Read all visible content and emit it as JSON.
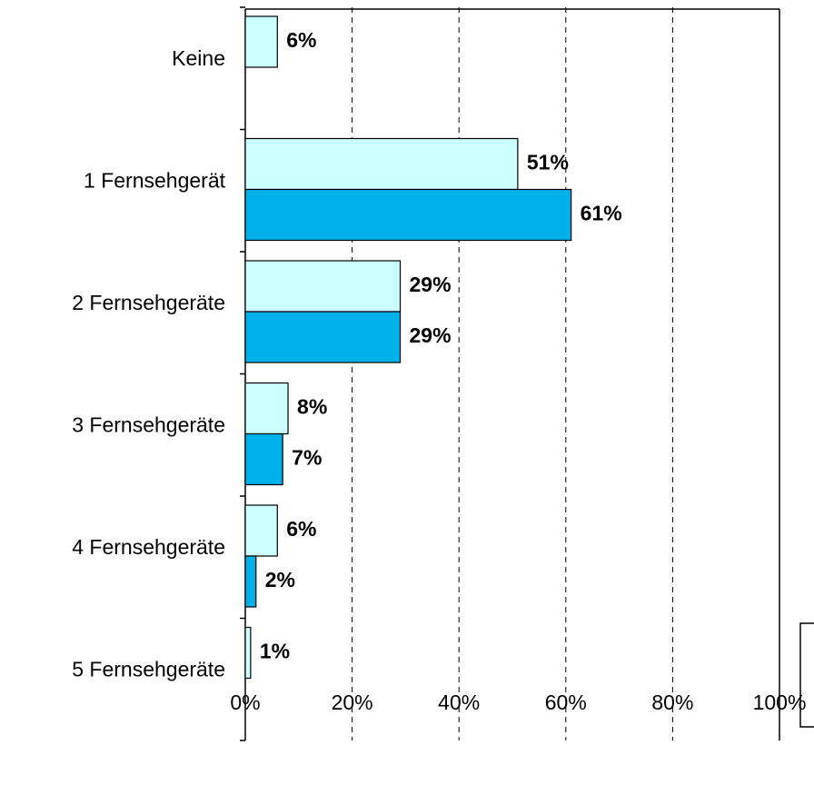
{
  "chart_data": {
    "type": "hbar",
    "categories": [
      "Keine",
      "1 Fernsehgerät",
      "2 Fernsehgeräte",
      "3 Fernsehgeräte",
      "4 Fernsehgeräte",
      "5 Fernsehgeräte"
    ],
    "series": [
      {
        "color": "#ccffff",
        "values": [
          6,
          51,
          29,
          8,
          6,
          1
        ],
        "value_labels": [
          "6%",
          "51%",
          "29%",
          "8%",
          "6%",
          "1%"
        ]
      },
      {
        "color": "#00b0e8",
        "values": [
          null,
          61,
          29,
          7,
          2,
          null
        ],
        "value_labels": [
          null,
          "61%",
          "29%",
          "7%",
          "2%",
          null
        ]
      }
    ],
    "xlim": [
      0,
      100
    ],
    "xticks": [
      {
        "value": 0,
        "label": "0%"
      },
      {
        "value": 20,
        "label": "20%"
      },
      {
        "value": 40,
        "label": "40%"
      },
      {
        "value": 60,
        "label": "60%"
      },
      {
        "value": 80,
        "label": "80%"
      },
      {
        "value": 100,
        "label": "100%"
      }
    ],
    "grid": true
  }
}
